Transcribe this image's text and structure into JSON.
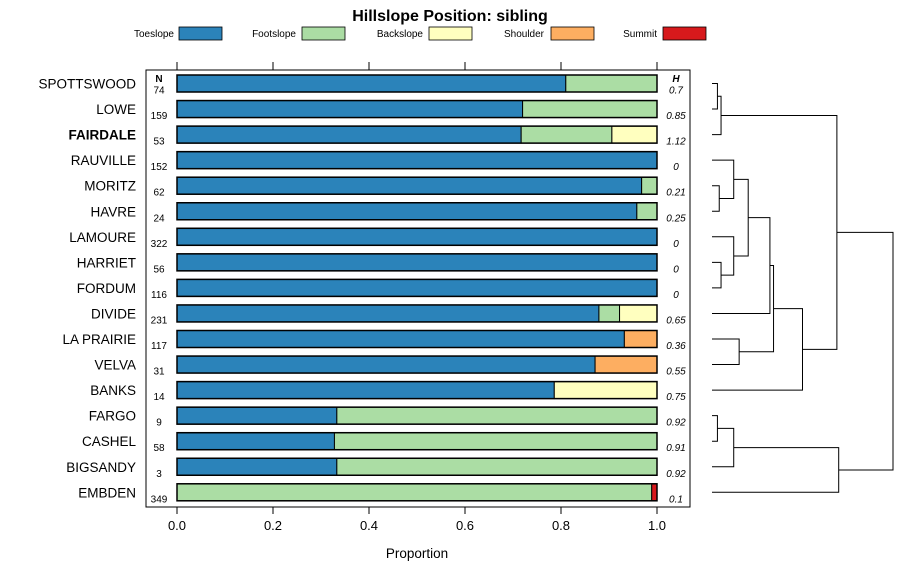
{
  "chart_data": {
    "type": "bar",
    "subtype": "stacked-horizontal-proportion",
    "title": "Hillslope Position: sibling",
    "xlabel": "Proportion",
    "xlim": [
      0,
      1
    ],
    "xticks": [
      "0.0",
      "0.2",
      "0.4",
      "0.6",
      "0.8",
      "1.0"
    ],
    "n_header": "N",
    "h_header": "H",
    "highlight": "FAIRDALE",
    "legend_position": "top",
    "legend": [
      {
        "name": "Toeslope",
        "color": "#2B83BA"
      },
      {
        "name": "Footslope",
        "color": "#ABDDA4"
      },
      {
        "name": "Backslope",
        "color": "#FFFFBF"
      },
      {
        "name": "Shoulder",
        "color": "#FDAE61"
      },
      {
        "name": "Summit",
        "color": "#D7191C"
      }
    ],
    "rows": [
      {
        "name": "SPOTTSWOOD",
        "n": "74",
        "h": "0.7",
        "values": [
          0.81,
          0.19,
          0,
          0,
          0
        ]
      },
      {
        "name": "LOWE",
        "n": "159",
        "h": "0.85",
        "values": [
          0.72,
          0.28,
          0,
          0,
          0
        ]
      },
      {
        "name": "FAIRDALE",
        "n": "53",
        "h": "1.12",
        "values": [
          0.717,
          0.189,
          0.094,
          0,
          0
        ]
      },
      {
        "name": "RAUVILLE",
        "n": "152",
        "h": "0",
        "values": [
          1.0,
          0,
          0,
          0,
          0
        ]
      },
      {
        "name": "MORITZ",
        "n": "62",
        "h": "0.21",
        "values": [
          0.968,
          0.032,
          0,
          0,
          0
        ]
      },
      {
        "name": "HAVRE",
        "n": "24",
        "h": "0.25",
        "values": [
          0.958,
          0.042,
          0,
          0,
          0
        ]
      },
      {
        "name": "LAMOURE",
        "n": "322",
        "h": "0",
        "values": [
          1.0,
          0,
          0,
          0,
          0
        ]
      },
      {
        "name": "HARRIET",
        "n": "56",
        "h": "0",
        "values": [
          1.0,
          0,
          0,
          0,
          0
        ]
      },
      {
        "name": "FORDUM",
        "n": "116",
        "h": "0",
        "values": [
          1.0,
          0,
          0,
          0,
          0
        ]
      },
      {
        "name": "DIVIDE",
        "n": "231",
        "h": "0.65",
        "values": [
          0.879,
          0.043,
          0.078,
          0,
          0
        ]
      },
      {
        "name": "LA PRAIRIE",
        "n": "117",
        "h": "0.36",
        "values": [
          0.932,
          0,
          0,
          0.068,
          0
        ]
      },
      {
        "name": "VELVA",
        "n": "31",
        "h": "0.55",
        "values": [
          0.871,
          0,
          0,
          0.129,
          0
        ]
      },
      {
        "name": "BANKS",
        "n": "14",
        "h": "0.75",
        "values": [
          0.786,
          0,
          0.214,
          0,
          0
        ]
      },
      {
        "name": "FARGO",
        "n": "9",
        "h": "0.92",
        "values": [
          0.333,
          0.667,
          0,
          0,
          0
        ]
      },
      {
        "name": "CASHEL",
        "n": "58",
        "h": "0.91",
        "values": [
          0.328,
          0.672,
          0,
          0,
          0
        ]
      },
      {
        "name": "BIGSANDY",
        "n": "3",
        "h": "0.92",
        "values": [
          0.333,
          0.667,
          0,
          0,
          0
        ]
      },
      {
        "name": "EMBDEN",
        "n": "349",
        "h": "0.1",
        "values": [
          0,
          0.989,
          0,
          0,
          0.011
        ]
      }
    ],
    "dendrogram": {
      "description": "hierarchical clustering of the rows",
      "merges": [
        [
          "SPOTTSWOOD",
          "LOWE",
          0.03
        ],
        [
          "m0",
          "FAIRDALE",
          0.05
        ],
        [
          "MORITZ",
          "HAVRE",
          0.04
        ],
        [
          "RAUVILLE",
          "m2",
          0.12
        ],
        [
          "HARRIET",
          "FORDUM",
          0.05
        ],
        [
          "LAMOURE",
          "m4",
          0.12
        ],
        [
          "m3",
          "m5",
          0.2
        ],
        [
          "DIVIDE",
          "m6",
          0.32
        ],
        [
          "LA PRAIRIE",
          "VELVA",
          0.15
        ],
        [
          "m7",
          "m8",
          0.34
        ],
        [
          "m9",
          "BANKS",
          0.5
        ],
        [
          "m1",
          "m10",
          0.69
        ],
        [
          "FARGO",
          "CASHEL",
          0.03
        ],
        [
          "m12",
          "BIGSANDY",
          0.12
        ],
        [
          "m13",
          "EMBDEN",
          0.7
        ],
        [
          "m11",
          "m14",
          1.0
        ]
      ]
    }
  }
}
